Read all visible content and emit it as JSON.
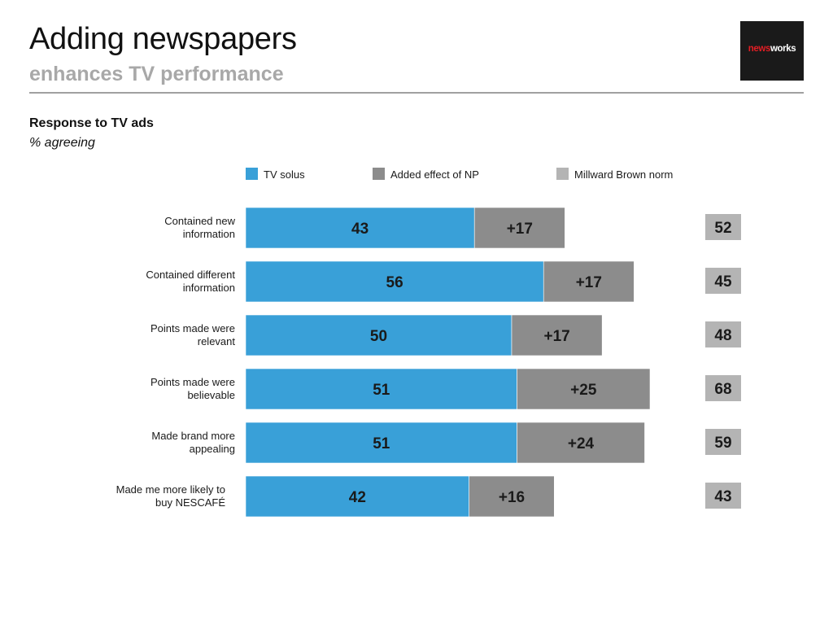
{
  "header": {
    "title": "Adding newspapers",
    "subtitle": "enhances TV performance"
  },
  "logo": {
    "text_news": "news",
    "text_works": "works"
  },
  "chart_data": {
    "type": "bar",
    "orientation": "horizontal",
    "stacked": true,
    "title": "Response to TV ads",
    "unit_label": "% agreeing",
    "categories": [
      "Contained new information",
      "Contained different information",
      "Points made were relevant",
      "Points made were believable",
      "Made brand more appealing",
      "Made me more likely to buy NESCAFÉ"
    ],
    "category_lines": [
      [
        "Contained new",
        "information"
      ],
      [
        "Contained different",
        "information"
      ],
      [
        "Points made were",
        "relevant"
      ],
      [
        "Points made were",
        "believable"
      ],
      [
        "Made brand more",
        "appealing"
      ],
      [
        "Made me more likely to",
        "buy NESCAFÉ"
      ]
    ],
    "series": [
      {
        "name": "TV solus",
        "color": "#39a0d8",
        "values": [
          43,
          56,
          50,
          51,
          51,
          42
        ],
        "labels": [
          "43",
          "56",
          "50",
          "51",
          "51",
          "42"
        ]
      },
      {
        "name": "Added effect of NP",
        "color": "#8c8c8c",
        "values": [
          17,
          17,
          17,
          25,
          24,
          16
        ],
        "labels": [
          "+17",
          "+17",
          "+17",
          "+25",
          "+24",
          "+16"
        ]
      }
    ],
    "norm": {
      "name": "Millward Brown norm",
      "color": "#b4b4b4",
      "values": [
        52,
        45,
        48,
        68,
        59,
        43
      ],
      "labels": [
        "52",
        "45",
        "48",
        "68",
        "59",
        "43"
      ]
    },
    "legend_position": "top",
    "grid": false
  }
}
